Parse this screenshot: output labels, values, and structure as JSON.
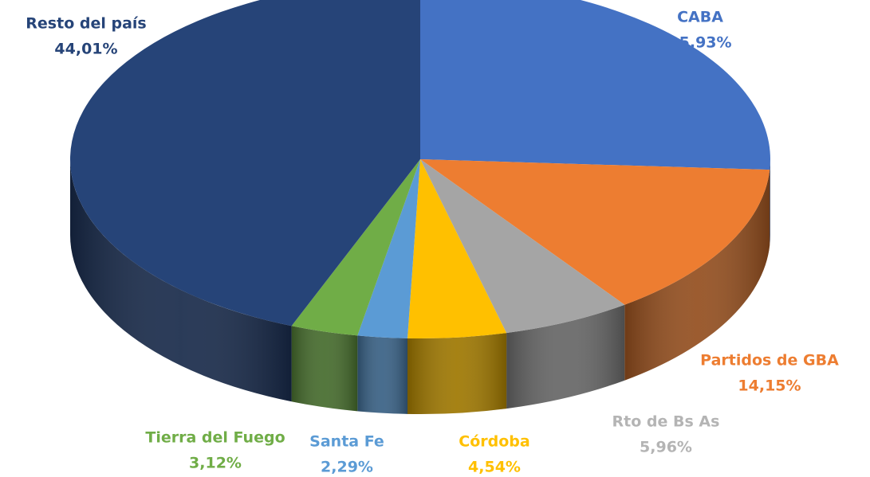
{
  "chart_data": {
    "type": "pie",
    "categories": [
      "CABA",
      "Partidos de GBA",
      "Rto de Bs As",
      "Córdoba",
      "Santa Fe",
      "Tierra del Fuego",
      "Resto del país"
    ],
    "values": [
      25.93,
      14.15,
      5.96,
      4.54,
      2.29,
      3.12,
      44.01
    ],
    "value_labels": [
      "25,93%",
      "14,15%",
      "5,96%",
      "4,54%",
      "2,29%",
      "3,12%",
      "44,01%"
    ],
    "colors": [
      "#4472c4",
      "#ed7d31",
      "#a5a5a5",
      "#ffc000",
      "#5b9bd5",
      "#70ad47",
      "#264478"
    ]
  }
}
